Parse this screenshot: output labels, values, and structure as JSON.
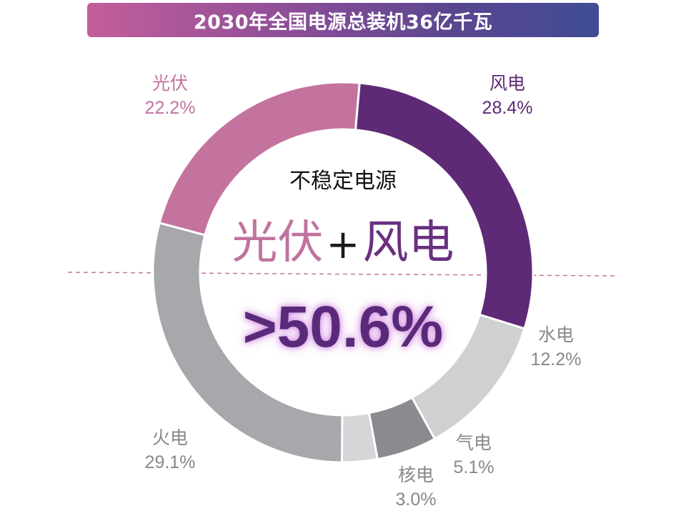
{
  "title": "2030年全国电源总装机36亿千瓦",
  "center": {
    "caption": "不稳定电源",
    "part1": "光伏",
    "plus": "+",
    "part2": "风电",
    "sum": ">50.6%"
  },
  "chart_data": {
    "type": "pie",
    "title": "2030年全国电源总装机36亿千瓦",
    "unit": "%",
    "slices": [
      {
        "name": "风电",
        "value": 28.4,
        "label": "28.4%",
        "color": "#5e2a76"
      },
      {
        "name": "水电",
        "value": 12.2,
        "label": "12.2%",
        "color": "#cfd0d2"
      },
      {
        "name": "气电",
        "value": 5.1,
        "label": "5.1%",
        "color": "#8a8b8e"
      },
      {
        "name": "核电",
        "value": 3.0,
        "label": "3.0%",
        "color": "#d5d6d8"
      },
      {
        "name": "火电",
        "value": 29.1,
        "label": "29.1%",
        "color": "#a7a8ab"
      },
      {
        "name": "光伏",
        "value": 22.2,
        "label": "22.2%",
        "color": "#c4739f"
      }
    ],
    "label_colors": {
      "风电": "#5e2a76",
      "光伏": "#c4739f",
      "other": "#888888"
    },
    "divider_color": "#c4739f"
  }
}
